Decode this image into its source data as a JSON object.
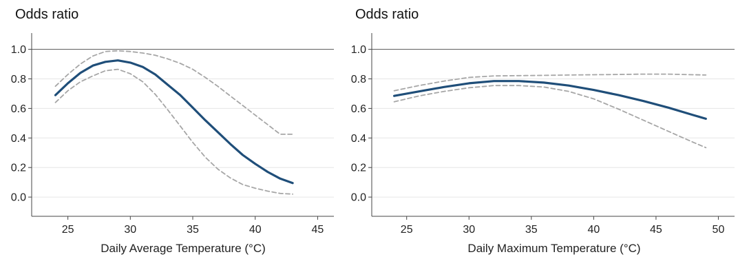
{
  "colors": {
    "estimate": "#1f4e79",
    "ci": "#a6a6a6",
    "axis": "#444444",
    "grid": "#e6e6e6",
    "reference": "#555555",
    "text": "#222222"
  },
  "chart_data": [
    {
      "type": "line",
      "title": "Odds ratio",
      "xlabel": "Daily Average Temperature (°C)",
      "ylabel": "",
      "xlim": [
        22.1,
        46.3
      ],
      "ylim": [
        -0.13,
        1.11
      ],
      "xticks": [
        25,
        30,
        35,
        40,
        45
      ],
      "yticks": [
        0,
        0.2,
        0.4,
        0.6,
        0.8,
        1.0
      ],
      "xtick_labels": [
        "25",
        "30",
        "35",
        "40",
        "45"
      ],
      "ytick_labels": [
        "0.0",
        "0.2",
        "0.4",
        "0.6",
        "0.8",
        "1.0"
      ],
      "grid": true,
      "reference_line": 1.0,
      "x": [
        24,
        25,
        26,
        27,
        28,
        29,
        30,
        31,
        32,
        33,
        34,
        35,
        36,
        37,
        38,
        39,
        40,
        41,
        42,
        43
      ],
      "series": [
        {
          "role": "estimate",
          "values": [
            0.69,
            0.77,
            0.84,
            0.89,
            0.915,
            0.925,
            0.91,
            0.88,
            0.83,
            0.76,
            0.69,
            0.605,
            0.52,
            0.44,
            0.36,
            0.285,
            0.225,
            0.17,
            0.125,
            0.095
          ]
        },
        {
          "role": "upper",
          "values": [
            0.75,
            0.83,
            0.9,
            0.955,
            0.985,
            0.99,
            0.985,
            0.975,
            0.96,
            0.935,
            0.905,
            0.865,
            0.81,
            0.75,
            0.685,
            0.62,
            0.555,
            0.49,
            0.425,
            0.425
          ]
        },
        {
          "role": "lower",
          "values": [
            0.64,
            0.72,
            0.78,
            0.82,
            0.855,
            0.865,
            0.835,
            0.78,
            0.695,
            0.59,
            0.48,
            0.37,
            0.27,
            0.19,
            0.13,
            0.085,
            0.06,
            0.04,
            0.025,
            0.02
          ]
        }
      ]
    },
    {
      "type": "line",
      "title": "Odds ratio",
      "xlabel": "Daily Maximum Temperature (°C)",
      "ylabel": "",
      "xlim": [
        22.2,
        51.3
      ],
      "ylim": [
        -0.13,
        1.11
      ],
      "xticks": [
        25,
        30,
        35,
        40,
        45,
        50
      ],
      "yticks": [
        0,
        0.2,
        0.4,
        0.6,
        0.8,
        1.0
      ],
      "xtick_labels": [
        "25",
        "30",
        "35",
        "40",
        "45",
        "50"
      ],
      "ytick_labels": [
        "0.0",
        "0.2",
        "0.4",
        "0.6",
        "0.8",
        "1.0"
      ],
      "grid": true,
      "reference_line": 1.0,
      "x": [
        24,
        26,
        28,
        30,
        32,
        34,
        36,
        38,
        40,
        42,
        44,
        46,
        48,
        49
      ],
      "series": [
        {
          "role": "estimate",
          "values": [
            0.685,
            0.715,
            0.745,
            0.77,
            0.785,
            0.785,
            0.775,
            0.755,
            0.725,
            0.69,
            0.65,
            0.605,
            0.555,
            0.53
          ]
        },
        {
          "role": "upper",
          "values": [
            0.72,
            0.755,
            0.785,
            0.81,
            0.82,
            0.822,
            0.824,
            0.826,
            0.828,
            0.83,
            0.832,
            0.832,
            0.828,
            0.826
          ]
        },
        {
          "role": "lower",
          "values": [
            0.645,
            0.685,
            0.715,
            0.74,
            0.755,
            0.755,
            0.745,
            0.715,
            0.665,
            0.595,
            0.52,
            0.445,
            0.37,
            0.335
          ]
        }
      ]
    }
  ]
}
